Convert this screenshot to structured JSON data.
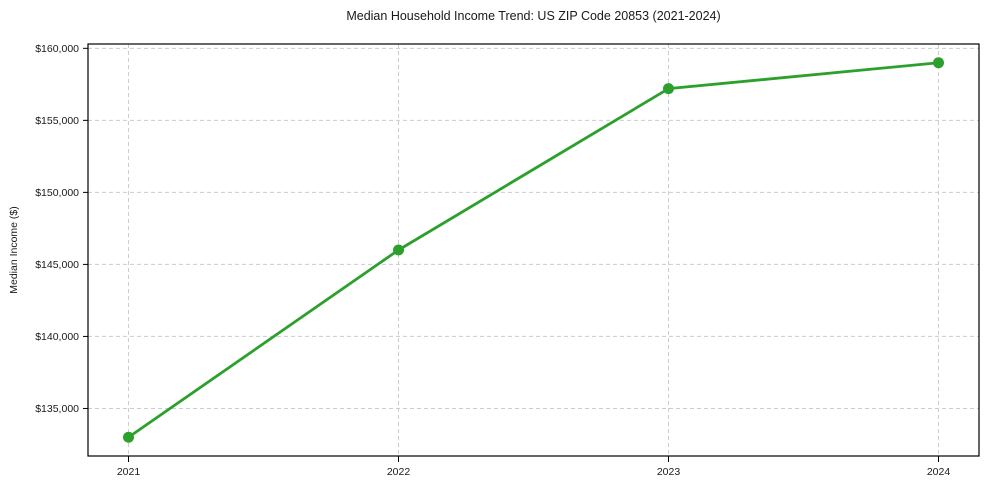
{
  "header": {
    "title": "Median Household Income Trend: US ZIP Code 20853 (2021-2024)"
  },
  "chart_data": {
    "type": "line",
    "title": "Median Household Income Trend: US ZIP Code 20853 (2021-2024)",
    "xlabel": "",
    "ylabel": "Median Income ($)",
    "x": [
      2021,
      2022,
      2023,
      2024
    ],
    "series": [
      {
        "name": "Median Household Income",
        "values": [
          133000,
          146000,
          157200,
          159000
        ]
      }
    ],
    "xticks": {
      "values": [
        2021,
        2022,
        2023,
        2024
      ],
      "labels": [
        "2021",
        "2022",
        "2023",
        "2024"
      ]
    },
    "yticks": {
      "values": [
        135000,
        140000,
        145000,
        150000,
        155000,
        160000
      ],
      "labels": [
        "$135,000",
        "$140,000",
        "$145,000",
        "$150,000",
        "$155,000",
        "$160,000"
      ]
    },
    "xlim": [
      2020.85,
      2024.15
    ],
    "ylim": [
      131700,
      160300
    ],
    "grid": true,
    "grid_style": "dashed",
    "legend": "none",
    "marker": "circle",
    "line_color": "#2ca02c",
    "grid_color": "#cccccc",
    "axis_color": "#000000",
    "text_color": "#1a1a1a",
    "background": "#ffffff"
  }
}
